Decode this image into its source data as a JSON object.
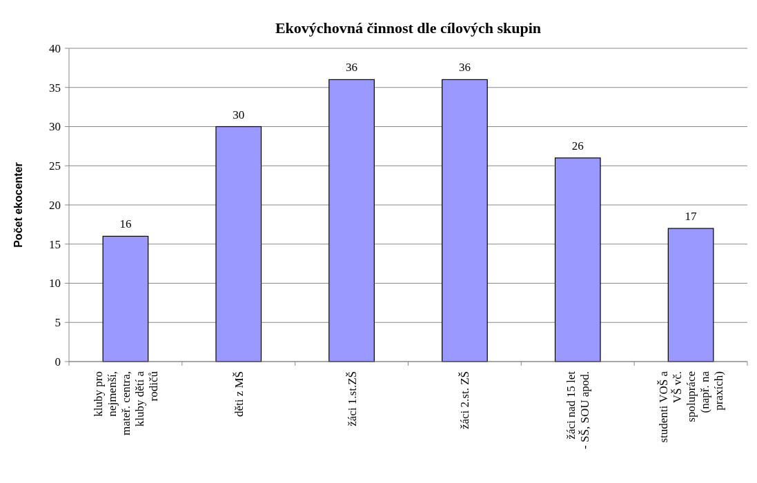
{
  "chart_data": {
    "type": "bar",
    "title": "Ekovýchovná činnost dle cílových skupin",
    "ylabel": "Počet ekocenter",
    "categories": [
      "kluby pro nejmenší, mateř. centra, kluby dětí a rodičů",
      "děti z MŠ",
      "žáci 1.st.ZŠ",
      "žáci 2.st. ZŠ",
      "žáci nad 15 let - SŠ, SOU apod.",
      "studenti VOŠ a VŠ vč. spolupráce (např. na praxích)"
    ],
    "values": [
      16,
      30,
      36,
      36,
      26,
      17
    ],
    "color": "#9999ff",
    "ylim": [
      0,
      40
    ],
    "yticks": [
      0,
      5,
      10,
      15,
      20,
      25,
      30,
      35,
      40
    ],
    "grid": "y",
    "data_labels": true
  }
}
